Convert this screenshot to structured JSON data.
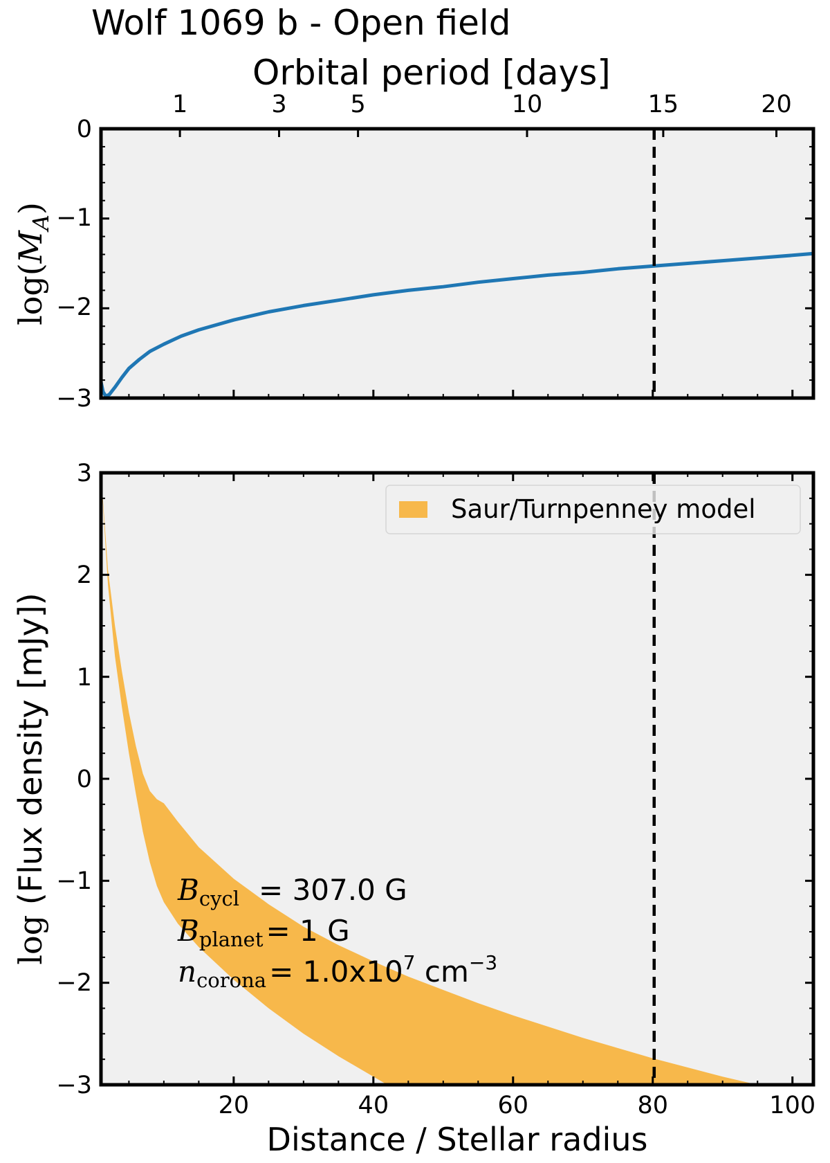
{
  "figure_title": "Wolf 1069 b - Open field",
  "colors": {
    "panel_bg": "#f0f0f0",
    "curve": "#1f77b4",
    "band": "#f7b84b",
    "vline": "#000000",
    "axes": "#000000"
  },
  "chart_data": [
    {
      "type": "line",
      "panel": "top",
      "title": "Wolf 1069 b - Open field",
      "ylabel": "log(M_A)",
      "ylabel_parts": {
        "prefix": "log(",
        "var": "M",
        "sub": "A",
        "suffix": ")"
      },
      "xlim": [
        1,
        103
      ],
      "ylim": [
        -3,
        0
      ],
      "yticks": [
        0,
        -1,
        -2,
        -3
      ],
      "ytick_labels": [
        "0",
        "−1",
        "−2",
        "−3"
      ],
      "top_axis": {
        "label": "Orbital period [days]",
        "ticks": [
          {
            "label": "1",
            "x": 12.3
          },
          {
            "label": "3",
            "x": 26.5
          },
          {
            "label": "5",
            "x": 37.8
          },
          {
            "label": "10",
            "x": 62.0
          },
          {
            "label": "15",
            "x": 81.5
          },
          {
            "label": "20",
            "x": 97.7
          }
        ]
      },
      "series": [
        {
          "name": "log(M_A)",
          "x": [
            1.0,
            1.3,
            1.7,
            2.2,
            3.0,
            4.0,
            5.0,
            6.5,
            8.0,
            10.0,
            12.5,
            15.0,
            20.0,
            25.0,
            30.0,
            35.0,
            40.0,
            45.0,
            50.0,
            55.0,
            60.0,
            65.0,
            70.0,
            75.0,
            80.0,
            85.0,
            90.0,
            95.0,
            100.0,
            103.0
          ],
          "y": [
            -2.82,
            -2.93,
            -2.98,
            -2.96,
            -2.88,
            -2.77,
            -2.67,
            -2.57,
            -2.48,
            -2.4,
            -2.31,
            -2.24,
            -2.13,
            -2.04,
            -1.97,
            -1.91,
            -1.85,
            -1.8,
            -1.76,
            -1.71,
            -1.67,
            -1.63,
            -1.6,
            -1.56,
            -1.53,
            -1.5,
            -1.47,
            -1.44,
            -1.41,
            -1.39
          ]
        }
      ],
      "vline_x": 80.2
    },
    {
      "type": "area",
      "panel": "bottom",
      "xlabel": "Distance / Stellar radius",
      "ylabel": "log (Flux density [mJy])",
      "ylabel_parts": {
        "math": "log",
        "text": " (Flux density [mJy])"
      },
      "xlim": [
        1,
        103
      ],
      "ylim": [
        -3,
        3
      ],
      "xticks": [
        20,
        40,
        60,
        80,
        100
      ],
      "xtick_labels": [
        "20",
        "40",
        "60",
        "80",
        "100"
      ],
      "yticks": [
        3,
        2,
        1,
        0,
        -1,
        -2,
        -3
      ],
      "ytick_labels": [
        "3",
        "2",
        "1",
        "0",
        "−1",
        "−2",
        "−3"
      ],
      "series": [
        {
          "name": "Saur/Turnpenney model",
          "x": [
            1.0,
            2.0,
            3.0,
            4.0,
            5.0,
            6.0,
            7.0,
            8.0,
            9.0,
            10.0,
            12.0,
            15.0,
            20.0,
            25.0,
            30.0,
            35.0,
            40.0,
            42.0,
            45.0,
            50.0,
            55.0,
            60.0,
            65.0,
            70.0,
            75.0,
            80.0,
            85.0,
            90.0,
            95.0,
            100.0,
            103.0
          ],
          "upper": [
            3.0,
            2.05,
            1.5,
            1.05,
            0.65,
            0.32,
            0.05,
            -0.12,
            -0.2,
            -0.24,
            -0.42,
            -0.67,
            -0.98,
            -1.23,
            -1.45,
            -1.63,
            -1.79,
            -1.85,
            -1.94,
            -2.07,
            -2.2,
            -2.32,
            -2.43,
            -2.54,
            -2.64,
            -2.74,
            -2.83,
            -2.92,
            -3.0,
            -3.0,
            -3.0
          ],
          "lower": [
            3.0,
            1.9,
            1.2,
            0.7,
            0.25,
            -0.15,
            -0.52,
            -0.82,
            -1.05,
            -1.21,
            -1.42,
            -1.65,
            -1.97,
            -2.25,
            -2.5,
            -2.72,
            -2.92,
            -3.0,
            -3.0,
            -3.0,
            -3.0,
            -3.0,
            -3.0,
            -3.0,
            -3.0,
            -3.0,
            -3.0,
            -3.0,
            -3.0,
            -3.0,
            -3.0
          ]
        }
      ],
      "vline_x": 80.2,
      "legend": {
        "label": "Saur/Turnpenney model",
        "position": "top-right"
      },
      "annotations": [
        {
          "var": "B",
          "sub": "cycl",
          "pad": "  ",
          "text": "= 307.0 G"
        },
        {
          "var": "B",
          "sub": "planet",
          "pad": "",
          "text": "= 1 G"
        },
        {
          "var": "n",
          "sub": "corona",
          "pad": "",
          "text": "= 1.0x10",
          "sup": "7",
          "text2": " cm",
          "sup2": "−3"
        }
      ]
    }
  ]
}
